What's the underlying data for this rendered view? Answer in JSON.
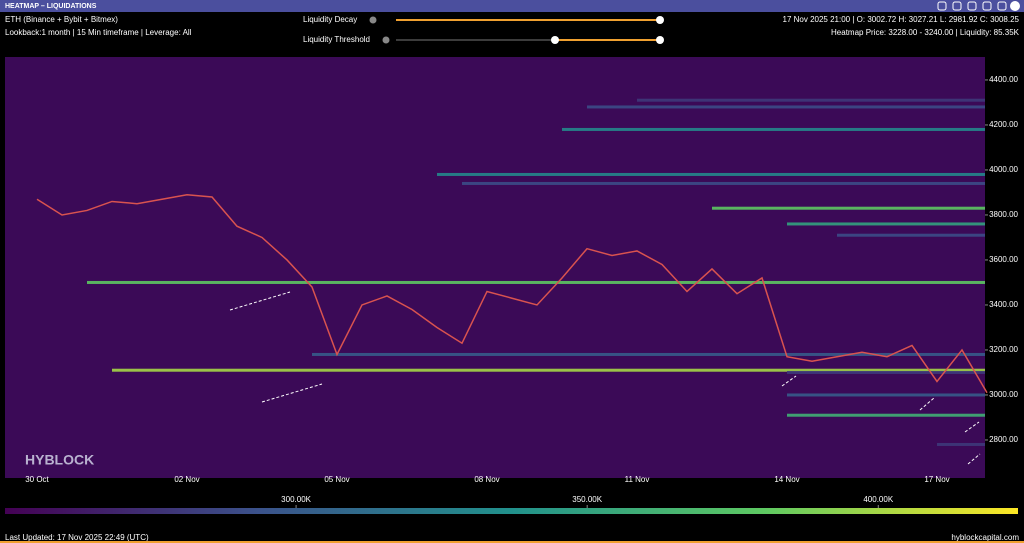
{
  "header": {
    "title": "HEATMAP – LIQUIDATIONS",
    "instrument": "ETH (Binance + Bybit + Bitmex)",
    "settings": "Lookback:1 month | 15 Min timeframe | Leverage: All",
    "decay_label": "Liquidity Decay",
    "threshold_label": "Liquidity Threshold",
    "ohlc": "17 Nov 2025 21:00 | O: 3002.72 H: 3027.21 L: 2981.92 C: 3008.25",
    "hover": "Heatmap Price: 3228.00 - 3240.00 | Liquidity: 85.35K"
  },
  "chart_data": {
    "type": "line",
    "watermark": "HYBLOCK",
    "categories": [
      "30 Oct",
      null,
      null,
      null,
      null,
      null,
      "02 Nov",
      null,
      null,
      null,
      null,
      null,
      "05 Nov",
      null,
      null,
      null,
      null,
      null,
      "08 Nov",
      null,
      null,
      null,
      null,
      null,
      "11 Nov",
      null,
      null,
      null,
      null,
      null,
      "14 Nov",
      null,
      null,
      null,
      null,
      null,
      "17 Nov",
      null,
      null
    ],
    "values": [
      3870,
      3800,
      3820,
      3860,
      3850,
      3870,
      3890,
      3880,
      3750,
      3700,
      3600,
      3480,
      3180,
      3400,
      3440,
      3380,
      3300,
      3230,
      3460,
      3430,
      3400,
      3520,
      3650,
      3620,
      3640,
      3580,
      3460,
      3560,
      3450,
      3520,
      3170,
      3150,
      3170,
      3190,
      3170,
      3220,
      3060,
      3200,
      3010
    ],
    "color": "#d9534f",
    "ylim": [
      2631,
      4502
    ],
    "yticks": [
      {
        "value": 2800,
        "label": "2800.00"
      },
      {
        "value": 3000,
        "label": "3000.00"
      },
      {
        "value": 3200,
        "label": "3200.00"
      },
      {
        "value": 3400,
        "label": "3400.00"
      },
      {
        "value": 3600,
        "label": "3600.00"
      },
      {
        "value": 3800,
        "label": "3800.00"
      },
      {
        "value": 4000,
        "label": "4000.00"
      },
      {
        "value": 4200,
        "label": "4200.00"
      },
      {
        "value": 4400,
        "label": "4400.00"
      }
    ],
    "liquidity_levels": {
      "price": [
        4310,
        4280,
        4180,
        3980,
        3940,
        3830,
        3760,
        3710,
        3500,
        3180,
        3110,
        3100,
        3000,
        2910,
        2780
      ],
      "start": [
        24,
        22,
        21,
        16,
        17,
        27,
        30,
        32,
        2,
        11,
        3,
        30,
        30,
        30,
        36
      ],
      "liquidity": [
        280000,
        290000,
        330000,
        330000,
        290000,
        380000,
        350000,
        290000,
        380000,
        300000,
        400000,
        280000,
        300000,
        360000,
        280000
      ]
    },
    "colorlim": [
      250000,
      424000
    ],
    "colorticks": [
      {
        "value": 300000,
        "label": "300.00K"
      },
      {
        "value": 350000,
        "label": "350.00K"
      },
      {
        "value": 400000,
        "label": "400.00K"
      }
    ]
  },
  "footer": {
    "updated": "Last Updated: 17 Nov 2025 22:49 (UTC)",
    "site": "hyblockcapital.com"
  }
}
